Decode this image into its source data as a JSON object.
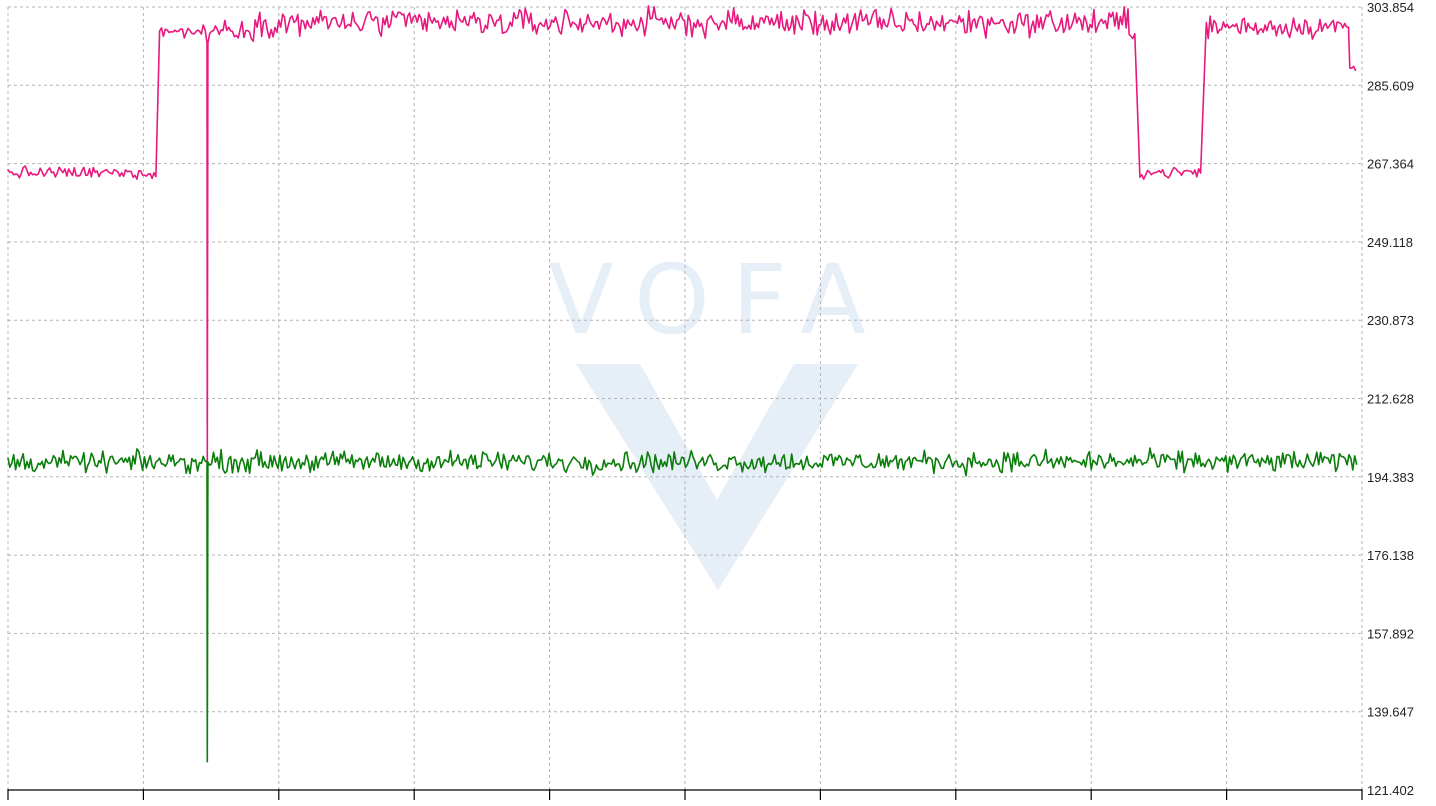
{
  "watermark": {
    "text": "VOFA",
    "color": "#e6eef7"
  },
  "chart_data": {
    "type": "line",
    "x_range": [
      0,
      1000
    ],
    "x_tick_count": 11,
    "ylim": [
      121.402,
      303.854
    ],
    "y_ticks": [
      "303.854",
      "285.609",
      "267.364",
      "249.118",
      "230.873",
      "212.628",
      "194.383",
      "176.138",
      "157.892",
      "139.647",
      "121.402"
    ],
    "y_axis_side": "right",
    "grid": true,
    "legend": "none",
    "series": [
      {
        "color": "#e8197e",
        "segments": [
          {
            "x": [
              0,
              110
            ],
            "y": 265.2,
            "noise": 1.0
          },
          {
            "x": [
              112,
              146
            ],
            "y": 298.2,
            "noise": 1.0
          },
          {
            "x": [
              147,
              147
            ],
            "y": 295.5,
            "spike_to": 198.0
          },
          {
            "x": [
              149,
              185
            ],
            "y": 298.6,
            "noise": 1.6
          },
          {
            "x": [
              186,
              828
            ],
            "y": 300.2,
            "noise": 2.2
          },
          {
            "x": [
              828,
              833
            ],
            "y": 297.5,
            "noise": 1.0
          },
          {
            "x": [
              836,
              882
            ],
            "y": 265.3,
            "noise": 1.0
          },
          {
            "x": [
              885,
              990
            ],
            "y": 299.3,
            "noise": 1.8
          },
          {
            "x": [
              991,
              996
            ],
            "y": 289.5,
            "noise": 0.5
          }
        ]
      },
      {
        "color": "#0a7d0a",
        "segments": [
          {
            "x": [
              0,
              146
            ],
            "y": 197.8,
            "noise": 1.6
          },
          {
            "x": [
              147,
              147
            ],
            "y": 197.8,
            "spike_to": 128.0
          },
          {
            "x": [
              149,
              996
            ],
            "y": 197.9,
            "noise": 1.7
          }
        ]
      }
    ]
  }
}
